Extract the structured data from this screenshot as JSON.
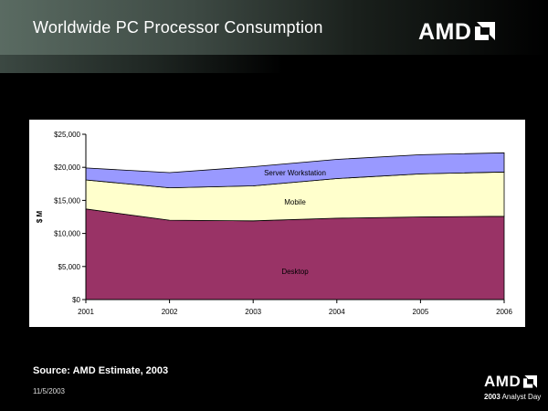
{
  "slide": {
    "title": "Worldwide PC Processor Consumption",
    "logo": "AMD",
    "source": "Source: AMD Estimate, 2003",
    "date": "11/5/2003",
    "footer_logo": "AMD",
    "footer_event_year": "2003",
    "footer_event_name": "Analyst Day"
  },
  "chart_data": {
    "type": "area",
    "stacked": true,
    "x": [
      "2001",
      "2002",
      "2003",
      "2004",
      "2005",
      "2006"
    ],
    "ylabel": "$ M",
    "ylim": [
      0,
      25000
    ],
    "yticks": [
      "$0",
      "$5,000",
      "$10,000",
      "$15,000",
      "$20,000",
      "$25,000"
    ],
    "grid": false,
    "series": [
      {
        "name": "Desktop",
        "values": [
          13700,
          12000,
          11900,
          12300,
          12500,
          12600
        ],
        "color": "#993366"
      },
      {
        "name": "Mobile",
        "values": [
          4400,
          4900,
          5300,
          6000,
          6500,
          6700
        ],
        "color": "#ffffcc"
      },
      {
        "name": "Server Workstation",
        "values": [
          1800,
          2300,
          2900,
          2900,
          2900,
          2900
        ],
        "color": "#9999ff"
      }
    ]
  }
}
